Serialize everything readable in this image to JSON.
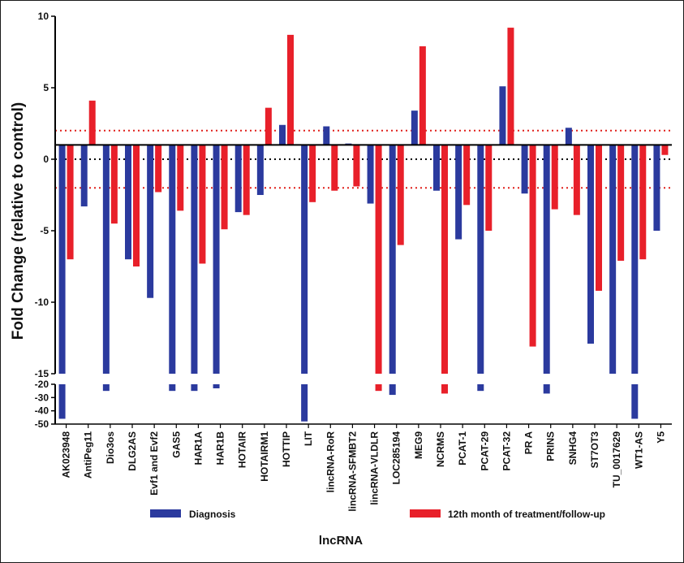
{
  "chart_data": {
    "type": "bar",
    "title": "",
    "xlabel": "lncRNA",
    "ylabel": "Fold Change (relative to control)",
    "ylim_upper": [
      -15,
      10
    ],
    "ylim_lower": [
      -50,
      -20
    ],
    "yticks_upper": [
      "10",
      "5",
      "0",
      "-5",
      "-10",
      "-15"
    ],
    "yticks_lower": [
      "-20",
      "-30",
      "-40",
      "-50"
    ],
    "baseline": 1,
    "reference_lines": [
      {
        "value": 2,
        "style": "dotted",
        "color": "#e0201b"
      },
      {
        "value": 0,
        "style": "dotted",
        "color": "#000000"
      },
      {
        "value": -2,
        "style": "dotted",
        "color": "#e0201b"
      }
    ],
    "categories": [
      "AK023948",
      "AntiPeg11",
      "Dio3os",
      "DLG2AS",
      "Evf1 and Evf2",
      "GAS5",
      "HAR1A",
      "HAR1B",
      "HOTAIR",
      "HOTAIRM1",
      "HOTTIP",
      "LIT",
      "lincRNA-RoR",
      "lincRNA-SFMBT2",
      "lincRNA-VLDLR",
      "LOC285194",
      "MEG9",
      "NCRMS",
      "PCAT-1",
      "PCAT-29",
      "PCAT-32",
      "PR A",
      "PRINS",
      "SNHG4",
      "ST7OT3",
      "TU_0017629",
      "WT1-AS",
      "Y5"
    ],
    "series": [
      {
        "name": "Diagnosis",
        "color": "#2b3a9e",
        "values": [
          -46,
          -3.3,
          -25,
          -7,
          -9.7,
          -25,
          -25,
          -22,
          -3.7,
          -2.5,
          2.4,
          -48,
          2.3,
          1.1,
          -3.1,
          -28,
          3.4,
          -2.2,
          -5.6,
          -25,
          5.1,
          -2.4,
          -27,
          2.2,
          -12.9,
          -15,
          -46,
          -5
        ]
      },
      {
        "name": "12th month of treatment/follow-up",
        "color": "#e8202a",
        "values": [
          -7,
          4.1,
          -4.5,
          -7.5,
          -2.3,
          -3.6,
          -7.3,
          -4.9,
          -3.9,
          3.6,
          8.7,
          -3,
          -2.2,
          -1.9,
          -25,
          -6,
          7.9,
          -27,
          -3.2,
          -5,
          9.2,
          -13.1,
          -3.5,
          -3.9,
          -9.2,
          -7.1,
          -7,
          0.3
        ]
      }
    ],
    "legend_position": "bottom"
  }
}
